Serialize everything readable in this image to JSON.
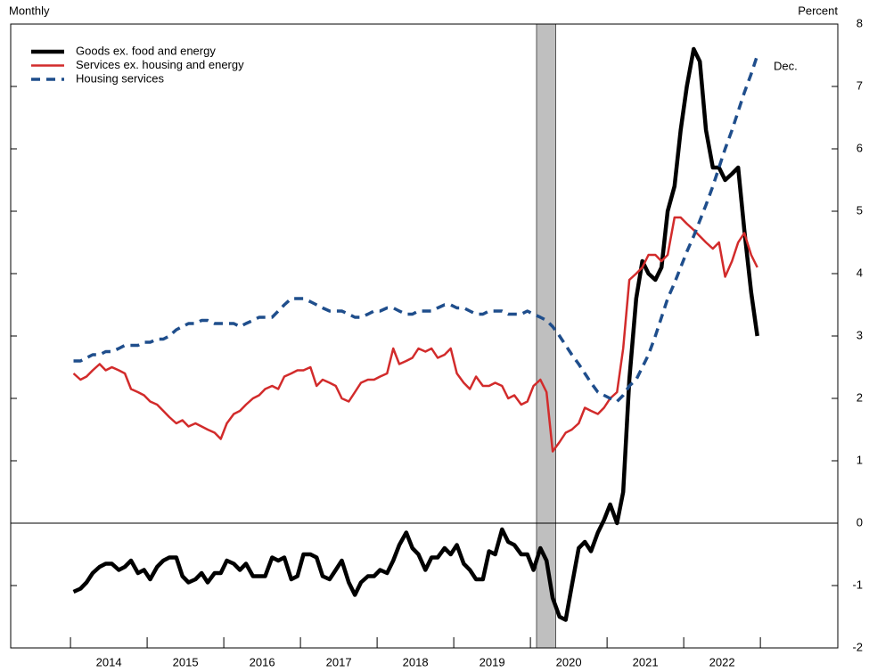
{
  "chart_data": {
    "type": "line",
    "left_label": "Monthly",
    "right_label": "Percent",
    "annotation": "Dec.",
    "categories": [
      "2014",
      "2015",
      "2016",
      "2017",
      "2018",
      "2019",
      "2020",
      "2021",
      "2022"
    ],
    "xlim": [
      2013.22,
      2024.01
    ],
    "xticks": [
      2014,
      2015,
      2016,
      2017,
      2018,
      2019,
      2020,
      2021,
      2022,
      2023
    ],
    "ylim": [
      -2,
      8
    ],
    "yticks": [
      -2,
      -1,
      0,
      1,
      2,
      3,
      4,
      5,
      6,
      7,
      8
    ],
    "shaded_region": [
      2020.08,
      2020.33
    ],
    "x": [
      2014.04,
      2014.13,
      2014.21,
      2014.29,
      2014.38,
      2014.46,
      2014.54,
      2014.63,
      2014.71,
      2014.79,
      2014.88,
      2014.96,
      2015.04,
      2015.13,
      2015.21,
      2015.29,
      2015.38,
      2015.46,
      2015.54,
      2015.63,
      2015.71,
      2015.79,
      2015.88,
      2015.96,
      2016.04,
      2016.13,
      2016.21,
      2016.29,
      2016.38,
      2016.46,
      2016.54,
      2016.63,
      2016.71,
      2016.79,
      2016.88,
      2016.96,
      2017.04,
      2017.13,
      2017.21,
      2017.29,
      2017.38,
      2017.46,
      2017.54,
      2017.63,
      2017.71,
      2017.79,
      2017.88,
      2017.96,
      2018.04,
      2018.13,
      2018.21,
      2018.29,
      2018.38,
      2018.46,
      2018.54,
      2018.63,
      2018.71,
      2018.79,
      2018.88,
      2018.96,
      2019.04,
      2019.13,
      2019.21,
      2019.29,
      2019.38,
      2019.46,
      2019.54,
      2019.63,
      2019.71,
      2019.79,
      2019.88,
      2019.96,
      2020.04,
      2020.13,
      2020.21,
      2020.29,
      2020.38,
      2020.46,
      2020.54,
      2020.63,
      2020.71,
      2020.79,
      2020.88,
      2020.96,
      2021.04,
      2021.13,
      2021.21,
      2021.29,
      2021.38,
      2021.46,
      2021.54,
      2021.63,
      2021.71,
      2021.79,
      2021.88,
      2021.96,
      2022.04,
      2022.13,
      2022.21,
      2022.29,
      2022.38,
      2022.46,
      2022.54,
      2022.63,
      2022.71,
      2022.79,
      2022.88,
      2022.96
    ],
    "series": [
      {
        "name": "Goods ex. food and energy",
        "color": "#000000",
        "dashed": false,
        "values": [
          -1.1,
          -1.05,
          -0.95,
          -0.8,
          -0.7,
          -0.65,
          -0.65,
          -0.75,
          -0.7,
          -0.6,
          -0.8,
          -0.75,
          -0.9,
          -0.7,
          -0.6,
          -0.55,
          -0.55,
          -0.85,
          -0.95,
          -0.9,
          -0.8,
          -0.95,
          -0.8,
          -0.8,
          -0.6,
          -0.65,
          -0.75,
          -0.65,
          -0.85,
          -0.85,
          -0.85,
          -0.55,
          -0.6,
          -0.55,
          -0.9,
          -0.85,
          -0.5,
          -0.5,
          -0.55,
          -0.85,
          -0.9,
          -0.75,
          -0.6,
          -0.95,
          -1.15,
          -0.95,
          -0.85,
          -0.85,
          -0.75,
          -0.8,
          -0.6,
          -0.35,
          -0.15,
          -0.4,
          -0.5,
          -0.75,
          -0.55,
          -0.55,
          -0.4,
          -0.5,
          -0.35,
          -0.65,
          -0.75,
          -0.9,
          -0.9,
          -0.45,
          -0.5,
          -0.1,
          -0.3,
          -0.35,
          -0.5,
          -0.5,
          -0.75,
          -0.4,
          -0.6,
          -1.2,
          -1.5,
          -1.55,
          -1.0,
          -0.4,
          -0.3,
          -0.45,
          -0.15,
          0.05,
          0.3,
          0.0,
          0.5,
          2.3,
          3.6,
          4.2,
          4.0,
          3.9,
          4.1,
          5.0,
          5.4,
          6.3,
          7.0,
          7.6,
          7.4,
          6.3,
          5.7,
          5.7,
          5.5,
          5.6,
          5.7,
          4.7,
          3.7,
          3.0
        ]
      },
      {
        "name": "Services ex. housing and energy",
        "color": "#d22b2b",
        "dashed": false,
        "values": [
          2.4,
          2.3,
          2.35,
          2.45,
          2.55,
          2.45,
          2.5,
          2.45,
          2.4,
          2.15,
          2.1,
          2.05,
          1.95,
          1.9,
          1.8,
          1.7,
          1.6,
          1.65,
          1.55,
          1.6,
          1.55,
          1.5,
          1.45,
          1.35,
          1.6,
          1.75,
          1.8,
          1.9,
          2.0,
          2.05,
          2.15,
          2.2,
          2.15,
          2.35,
          2.4,
          2.45,
          2.45,
          2.5,
          2.2,
          2.3,
          2.25,
          2.2,
          2.0,
          1.95,
          2.1,
          2.25,
          2.3,
          2.3,
          2.35,
          2.4,
          2.8,
          2.55,
          2.6,
          2.65,
          2.8,
          2.75,
          2.8,
          2.65,
          2.7,
          2.8,
          2.4,
          2.25,
          2.15,
          2.35,
          2.2,
          2.2,
          2.25,
          2.2,
          2.0,
          2.05,
          1.9,
          1.95,
          2.2,
          2.3,
          2.1,
          1.15,
          1.3,
          1.45,
          1.5,
          1.6,
          1.85,
          1.8,
          1.75,
          1.85,
          2.0,
          2.1,
          2.8,
          3.9,
          4.0,
          4.1,
          4.3,
          4.3,
          4.2,
          4.3,
          4.9,
          4.9,
          4.8,
          4.7,
          4.6,
          4.5,
          4.4,
          4.5,
          3.95,
          4.2,
          4.5,
          4.65,
          4.3,
          4.1
        ]
      },
      {
        "name": "Housing services",
        "color": "#1f4e8c",
        "dashed": true,
        "values": [
          2.6,
          2.6,
          2.65,
          2.7,
          2.7,
          2.75,
          2.75,
          2.8,
          2.85,
          2.85,
          2.85,
          2.9,
          2.9,
          2.95,
          2.95,
          3.0,
          3.1,
          3.15,
          3.2,
          3.2,
          3.25,
          3.25,
          3.2,
          3.2,
          3.2,
          3.2,
          3.15,
          3.2,
          3.25,
          3.3,
          3.3,
          3.3,
          3.4,
          3.5,
          3.6,
          3.6,
          3.6,
          3.55,
          3.5,
          3.45,
          3.4,
          3.4,
          3.4,
          3.35,
          3.3,
          3.3,
          3.35,
          3.4,
          3.4,
          3.45,
          3.45,
          3.4,
          3.35,
          3.35,
          3.4,
          3.4,
          3.4,
          3.45,
          3.5,
          3.5,
          3.45,
          3.45,
          3.4,
          3.35,
          3.35,
          3.4,
          3.4,
          3.4,
          3.35,
          3.35,
          3.35,
          3.4,
          3.35,
          3.3,
          3.25,
          3.15,
          3.0,
          2.85,
          2.7,
          2.55,
          2.4,
          2.25,
          2.1,
          2.05,
          2.0,
          1.95,
          2.05,
          2.2,
          2.3,
          2.5,
          2.7,
          3.0,
          3.3,
          3.6,
          3.85,
          4.1,
          4.35,
          4.6,
          4.85,
          5.1,
          5.4,
          5.7,
          6.0,
          6.3,
          6.6,
          6.9,
          7.2,
          7.5
        ]
      }
    ]
  }
}
